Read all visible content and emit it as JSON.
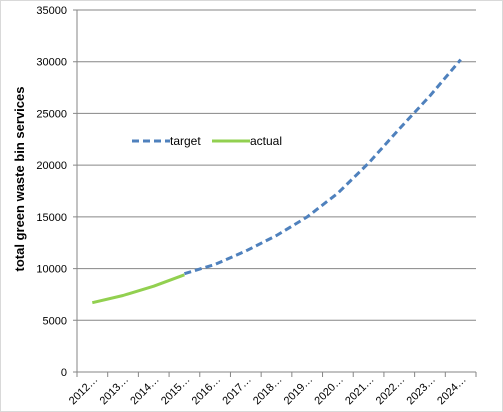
{
  "chart_data": {
    "type": "line",
    "title": "",
    "xlabel": "",
    "ylabel": "total green waste bin services",
    "categories": [
      "2012…",
      "2013…",
      "2014…",
      "2015…",
      "2016…",
      "2017…",
      "2018…",
      "2019…",
      "2020…",
      "2021…",
      "2022…",
      "2023…",
      "2024…"
    ],
    "ylim": [
      0,
      35000
    ],
    "yticks": [
      0,
      5000,
      10000,
      15000,
      20000,
      25000,
      30000,
      35000
    ],
    "grid": true,
    "legend_position": "left-middle",
    "series": [
      {
        "name": "target",
        "style": "dashed",
        "color": "#4f81bd",
        "values": [
          null,
          null,
          null,
          9500,
          10400,
          11700,
          13200,
          15000,
          17300,
          20200,
          23500,
          26700,
          30200
        ]
      },
      {
        "name": "actual",
        "style": "solid",
        "color": "#92d050",
        "values": [
          6700,
          7400,
          8300,
          9400,
          null,
          null,
          null,
          null,
          null,
          null,
          null,
          null,
          null
        ]
      }
    ]
  }
}
